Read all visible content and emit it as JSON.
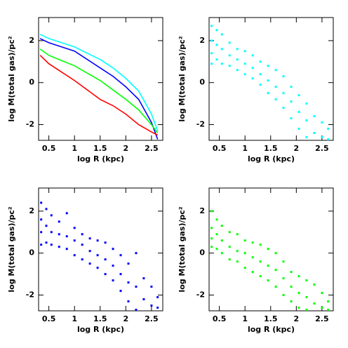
{
  "chart_data": [
    {
      "type": "line",
      "xlabel": "log R (kpc)",
      "ylabel": "log M(total gas)/pc²",
      "xlim": [
        0.3,
        2.72
      ],
      "ylim": [
        -2.75,
        3.1
      ],
      "xticks": [
        0.5,
        1,
        1.5,
        2,
        2.5
      ],
      "yticks": [
        -2,
        0,
        2
      ],
      "x": [
        0.33,
        0.5,
        0.75,
        1,
        1.25,
        1.5,
        1.75,
        2,
        2.25,
        2.5,
        2.62
      ],
      "series": [
        {
          "color": "#00ffff",
          "values": [
            2.3,
            2.1,
            1.9,
            1.7,
            1.4,
            1.1,
            0.7,
            0.2,
            -0.4,
            -1.5,
            -2.3
          ]
        },
        {
          "color": "#0000ff",
          "values": [
            2.1,
            1.9,
            1.7,
            1.5,
            1.1,
            0.7,
            0.3,
            -0.2,
            -0.8,
            -1.9,
            -2.7
          ]
        },
        {
          "color": "#00ff00",
          "values": [
            1.6,
            1.3,
            1.05,
            0.8,
            0.45,
            0.1,
            -0.35,
            -0.8,
            -1.3,
            -2.0,
            -2.4
          ]
        },
        {
          "color": "#ff0000",
          "values": [
            1.3,
            0.9,
            0.5,
            0.1,
            -0.35,
            -0.8,
            -1.1,
            -1.5,
            -2.0,
            -2.35,
            -2.5
          ]
        }
      ]
    },
    {
      "type": "scatter",
      "xlabel": "log R (kpc)",
      "ylabel": "log M(total gas)/pc²",
      "xlim": [
        0.3,
        2.72
      ],
      "ylim": [
        -2.75,
        3.1
      ],
      "xticks": [
        0.5,
        1,
        1.5,
        2,
        2.5
      ],
      "yticks": [
        -2,
        0,
        2
      ],
      "color": "#00ffff",
      "x": [
        0.35,
        0.35,
        0.35,
        0.35,
        0.45,
        0.45,
        0.45,
        0.55,
        0.55,
        0.55,
        0.7,
        0.7,
        0.7,
        0.85,
        0.85,
        0.85,
        1.0,
        1.0,
        1.0,
        1.15,
        1.15,
        1.15,
        1.3,
        1.3,
        1.3,
        1.45,
        1.45,
        1.45,
        1.6,
        1.6,
        1.6,
        1.75,
        1.75,
        1.75,
        1.9,
        1.9,
        1.9,
        2.05,
        2.05,
        2.05,
        2.2,
        2.2,
        2.2,
        2.35,
        2.35,
        2.5,
        2.5,
        2.62,
        2.62
      ],
      "y": [
        2.7,
        2.0,
        1.4,
        0.9,
        2.5,
        1.8,
        1.1,
        2.3,
        1.6,
        0.9,
        1.9,
        1.3,
        0.8,
        1.6,
        1.1,
        0.6,
        1.5,
        0.9,
        0.4,
        1.3,
        0.7,
        0.2,
        1.0,
        0.4,
        -0.1,
        0.8,
        0.1,
        -0.5,
        0.6,
        -0.2,
        -0.8,
        0.3,
        -0.5,
        -1.2,
        -0.2,
        -0.9,
        -1.7,
        -0.6,
        -1.4,
        -2.2,
        -1.0,
        -1.8,
        -2.6,
        -1.6,
        -2.4,
        -1.9,
        -2.6,
        -2.2,
        -2.7
      ]
    },
    {
      "type": "scatter",
      "xlabel": "log R (kpc)",
      "ylabel": "log M(total gas)/pc²",
      "xlim": [
        0.3,
        2.72
      ],
      "ylim": [
        -2.75,
        3.1
      ],
      "xticks": [
        0.5,
        1,
        1.5,
        2,
        2.5
      ],
      "yticks": [
        -2,
        0,
        2
      ],
      "color": "#0000ff",
      "x": [
        0.35,
        0.35,
        0.35,
        0.35,
        0.45,
        0.45,
        0.45,
        0.55,
        0.55,
        0.55,
        0.7,
        0.7,
        0.7,
        0.85,
        0.85,
        0.85,
        1.0,
        1.0,
        1.0,
        1.15,
        1.15,
        1.15,
        1.3,
        1.3,
        1.3,
        1.45,
        1.45,
        1.45,
        1.6,
        1.6,
        1.6,
        1.75,
        1.75,
        1.75,
        1.9,
        1.9,
        1.9,
        2.05,
        2.05,
        2.05,
        2.2,
        2.2,
        2.2,
        2.35,
        2.35,
        2.5,
        2.5,
        2.62,
        2.62
      ],
      "y": [
        2.4,
        1.6,
        1.0,
        0.4,
        2.1,
        1.3,
        0.5,
        1.8,
        1.0,
        0.4,
        1.5,
        0.9,
        0.3,
        1.9,
        0.8,
        0.2,
        1.2,
        0.6,
        -0.1,
        0.9,
        0.4,
        -0.3,
        0.7,
        0.1,
        -0.5,
        0.6,
        -0.1,
        -0.7,
        0.5,
        -0.3,
        -1.0,
        0.2,
        -0.6,
        -1.3,
        -0.1,
        -1.0,
        -1.8,
        -0.5,
        -1.4,
        -2.3,
        0.0,
        -1.6,
        -2.7,
        -1.2,
        -2.2,
        -1.6,
        -2.5,
        -2.1,
        -2.6
      ]
    },
    {
      "type": "scatter",
      "xlabel": "log R (kpc)",
      "ylabel": "log M(total gas)/pc²",
      "xlim": [
        0.3,
        2.72
      ],
      "ylim": [
        -2.75,
        3.1
      ],
      "xticks": [
        0.5,
        1,
        1.5,
        2,
        2.5
      ],
      "yticks": [
        -2,
        0,
        2
      ],
      "color": "#00ff00",
      "x": [
        0.35,
        0.35,
        0.35,
        0.35,
        0.45,
        0.45,
        0.45,
        0.55,
        0.55,
        0.55,
        0.7,
        0.7,
        0.7,
        0.85,
        0.85,
        0.85,
        1.0,
        1.0,
        1.0,
        1.15,
        1.15,
        1.15,
        1.3,
        1.3,
        1.3,
        1.45,
        1.45,
        1.45,
        1.6,
        1.6,
        1.6,
        1.75,
        1.75,
        1.75,
        1.9,
        1.9,
        1.9,
        2.05,
        2.05,
        2.05,
        2.2,
        2.2,
        2.2,
        2.35,
        2.35,
        2.5,
        2.5,
        2.62,
        2.62
      ],
      "y": [
        2.0,
        1.2,
        0.7,
        0.3,
        1.6,
        0.9,
        0.2,
        1.3,
        0.6,
        0.0,
        1.0,
        0.3,
        -0.3,
        0.9,
        0.1,
        -0.4,
        0.6,
        0.0,
        -0.7,
        0.5,
        -0.2,
        -0.9,
        0.4,
        -0.4,
        -1.1,
        0.2,
        -0.6,
        -1.3,
        0.0,
        -0.8,
        -1.6,
        -0.4,
        -1.2,
        -2.0,
        -0.9,
        -1.6,
        -2.3,
        -1.1,
        -1.9,
        -2.6,
        -1.3,
        -2.1,
        -2.7,
        -1.5,
        -2.4,
        -1.9,
        -2.6,
        -2.3,
        -2.7
      ]
    }
  ]
}
